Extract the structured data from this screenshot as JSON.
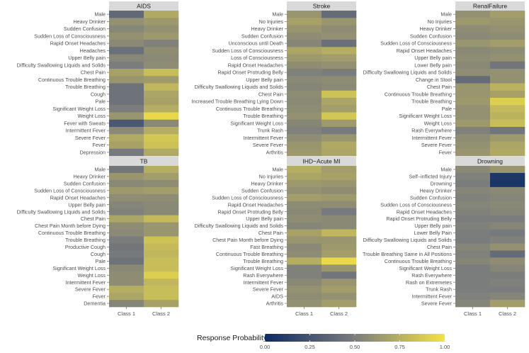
{
  "chart_data": {
    "type": "heatmap",
    "x_categories": [
      "Class 1",
      "Class 2"
    ],
    "legend": {
      "title": "Response Probability",
      "ticks": [
        "0.00",
        "0.25",
        "0.50",
        "0.75",
        "1.00"
      ],
      "range": [
        0,
        1
      ],
      "position": "bottom",
      "colors": {
        "low": "#0e2a63",
        "mid": "#7b7d7d",
        "high": "#f4e244"
      }
    },
    "panels": [
      {
        "title": "AIDS",
        "rows": [
          {
            "label": "Male",
            "values": [
              0.38,
              0.72
            ]
          },
          {
            "label": "Heavy Drinker",
            "values": [
              0.6,
              0.64
            ]
          },
          {
            "label": "Sudden Confusion",
            "values": [
              0.55,
              0.6
            ]
          },
          {
            "label": "Sudden Loss of Consciousness",
            "values": [
              0.6,
              0.64
            ]
          },
          {
            "label": "Rapid Onset Headaches",
            "values": [
              0.56,
              0.52
            ]
          },
          {
            "label": "Headaches",
            "values": [
              0.42,
              0.58
            ]
          },
          {
            "label": "Upper Belly pain",
            "values": [
              0.55,
              0.56
            ]
          },
          {
            "label": "Difficulty Swallowing Liquids and Solids",
            "values": [
              0.5,
              0.58
            ]
          },
          {
            "label": "Chest Pain",
            "values": [
              0.68,
              0.82
            ]
          },
          {
            "label": "Continuous Trouble Breathing",
            "values": [
              0.62,
              0.65
            ]
          },
          {
            "label": "Trouble Breathing",
            "values": [
              0.44,
              0.78
            ]
          },
          {
            "label": "Cough",
            "values": [
              0.44,
              0.7
            ]
          },
          {
            "label": "Pale",
            "values": [
              0.44,
              0.68
            ]
          },
          {
            "label": "Significant Weight Loss",
            "values": [
              0.5,
              0.74
            ]
          },
          {
            "label": "Weight Loss",
            "values": [
              0.62,
              0.95
            ]
          },
          {
            "label": "Fever with Sweats",
            "values": [
              0.28,
              0.56
            ]
          },
          {
            "label": "Intermittent Fever",
            "values": [
              0.56,
              0.74
            ]
          },
          {
            "label": "Severe Fever",
            "values": [
              0.72,
              0.86
            ]
          },
          {
            "label": "Fever",
            "values": [
              0.68,
              0.84
            ]
          },
          {
            "label": "Depression",
            "values": [
              0.48,
              0.72
            ]
          }
        ]
      },
      {
        "title": "Stroke",
        "rows": [
          {
            "label": "Male",
            "values": [
              0.62,
              0.4
            ]
          },
          {
            "label": "No Injuries",
            "values": [
              0.68,
              0.62
            ]
          },
          {
            "label": "Heavy Drinker",
            "values": [
              0.62,
              0.58
            ]
          },
          {
            "label": "Sudden Confusion",
            "values": [
              0.58,
              0.6
            ]
          },
          {
            "label": "Unconscious until Death",
            "values": [
              0.54,
              0.42
            ]
          },
          {
            "label": "Sudden Loss of Consciousness",
            "values": [
              0.7,
              0.74
            ]
          },
          {
            "label": "Loss of Consciousness",
            "values": [
              0.64,
              0.66
            ]
          },
          {
            "label": "Rapid Onset Headaches",
            "values": [
              0.58,
              0.6
            ]
          },
          {
            "label": "Rapid Onset Protruding Belly",
            "values": [
              0.52,
              0.5
            ]
          },
          {
            "label": "Upper Belly pain",
            "values": [
              0.56,
              0.58
            ]
          },
          {
            "label": "Difficulty Swallowing Liquids and Solids",
            "values": [
              0.54,
              0.56
            ]
          },
          {
            "label": "Chest Pain",
            "values": [
              0.58,
              0.84
            ]
          },
          {
            "label": "Increased Trouble Breathing Lying Down",
            "values": [
              0.56,
              0.7
            ]
          },
          {
            "label": "Continuous Trouble Breathing",
            "values": [
              0.58,
              0.66
            ]
          },
          {
            "label": "Trouble Breathing",
            "values": [
              0.6,
              0.86
            ]
          },
          {
            "label": "Significant Weight Loss",
            "values": [
              0.54,
              0.64
            ]
          },
          {
            "label": "Trunk Rash",
            "values": [
              0.52,
              0.48
            ]
          },
          {
            "label": "Intermittent Fever",
            "values": [
              0.58,
              0.62
            ]
          },
          {
            "label": "Severe Fever",
            "values": [
              0.62,
              0.72
            ]
          },
          {
            "label": "Arthritis",
            "values": [
              0.64,
              0.7
            ]
          }
        ]
      },
      {
        "title": "RenalFailure",
        "rows": [
          {
            "label": "Male",
            "values": [
              0.6,
              0.66
            ]
          },
          {
            "label": "No Injuries",
            "values": [
              0.64,
              0.62
            ]
          },
          {
            "label": "Heavy Drinker",
            "values": [
              0.58,
              0.6
            ]
          },
          {
            "label": "Sudden Confusion",
            "values": [
              0.56,
              0.58
            ]
          },
          {
            "label": "Sudden Loss of Consciousness",
            "values": [
              0.62,
              0.66
            ]
          },
          {
            "label": "Rapid Onset Headaches",
            "values": [
              0.56,
              0.58
            ]
          },
          {
            "label": "Upper Belly pain",
            "values": [
              0.58,
              0.6
            ]
          },
          {
            "label": "Lower Belly pain",
            "values": [
              0.56,
              0.46
            ]
          },
          {
            "label": "Difficulty Swallowing Liquids and Solids",
            "values": [
              0.58,
              0.6
            ]
          },
          {
            "label": "Change in Stool",
            "values": [
              0.4,
              0.6
            ]
          },
          {
            "label": "Chest Pain",
            "values": [
              0.62,
              0.76
            ]
          },
          {
            "label": "Continuous Trouble Breathing",
            "values": [
              0.62,
              0.68
            ]
          },
          {
            "label": "Trouble Breathing",
            "values": [
              0.64,
              0.9
            ]
          },
          {
            "label": "Pale",
            "values": [
              0.6,
              0.8
            ]
          },
          {
            "label": "Significant Weight Loss",
            "values": [
              0.6,
              0.76
            ]
          },
          {
            "label": "Weight Loss",
            "values": [
              0.64,
              0.82
            ]
          },
          {
            "label": "Rash Everywhere",
            "values": [
              0.52,
              0.46
            ]
          },
          {
            "label": "Intermittent Fever",
            "values": [
              0.58,
              0.64
            ]
          },
          {
            "label": "Severe Fever",
            "values": [
              0.6,
              0.7
            ]
          },
          {
            "label": "Fever",
            "values": [
              0.62,
              0.72
            ]
          }
        ]
      },
      {
        "title": "TB",
        "rows": [
          {
            "label": "Male",
            "values": [
              0.46,
              0.74
            ]
          },
          {
            "label": "Heavy Drinker",
            "values": [
              0.62,
              0.66
            ]
          },
          {
            "label": "Sudden Confusion",
            "values": [
              0.56,
              0.58
            ]
          },
          {
            "label": "Sudden Loss of Consciousness",
            "values": [
              0.64,
              0.66
            ]
          },
          {
            "label": "Rapid Onset Headaches",
            "values": [
              0.58,
              0.58
            ]
          },
          {
            "label": "Upper Belly pain",
            "values": [
              0.54,
              0.56
            ]
          },
          {
            "label": "Difficulty Swallowing Liquids and Solids",
            "values": [
              0.52,
              0.56
            ]
          },
          {
            "label": "Chest Pain",
            "values": [
              0.7,
              0.8
            ]
          },
          {
            "label": "Chest Pain Month before Dying",
            "values": [
              0.58,
              0.62
            ]
          },
          {
            "label": "Continuous Trouble Breathing",
            "values": [
              0.56,
              0.62
            ]
          },
          {
            "label": "Trouble Breathing",
            "values": [
              0.5,
              0.84
            ]
          },
          {
            "label": "Productive Cough",
            "values": [
              0.46,
              0.8
            ]
          },
          {
            "label": "Cough",
            "values": [
              0.48,
              0.78
            ]
          },
          {
            "label": "Pale",
            "values": [
              0.44,
              0.82
            ]
          },
          {
            "label": "Significant Weight Loss",
            "values": [
              0.56,
              0.82
            ]
          },
          {
            "label": "Weight Loss",
            "values": [
              0.58,
              0.9
            ]
          },
          {
            "label": "Intermittent Fever",
            "values": [
              0.58,
              0.78
            ]
          },
          {
            "label": "Severe Fever",
            "values": [
              0.74,
              0.82
            ]
          },
          {
            "label": "Fever",
            "values": [
              0.7,
              0.82
            ]
          },
          {
            "label": "Dementia",
            "values": [
              0.54,
              0.68
            ]
          }
        ]
      },
      {
        "title": "IHD−Acute MI",
        "rows": [
          {
            "label": "Male",
            "values": [
              0.74,
              0.66
            ]
          },
          {
            "label": "No Injuries",
            "values": [
              0.7,
              0.68
            ]
          },
          {
            "label": "Heavy Drinker",
            "values": [
              0.64,
              0.62
            ]
          },
          {
            "label": "Sudden Confusion",
            "values": [
              0.6,
              0.58
            ]
          },
          {
            "label": "Sudden Loss of Consciousness",
            "values": [
              0.66,
              0.64
            ]
          },
          {
            "label": "Rapid Onset Headaches",
            "values": [
              0.58,
              0.58
            ]
          },
          {
            "label": "Rapid Onset Protruding Belly",
            "values": [
              0.56,
              0.48
            ]
          },
          {
            "label": "Upper Belly pain",
            "values": [
              0.58,
              0.56
            ]
          },
          {
            "label": "Difficulty Swallowing Liquids and Solids",
            "values": [
              0.54,
              0.56
            ]
          },
          {
            "label": "Chest Pain",
            "values": [
              0.68,
              0.78
            ]
          },
          {
            "label": "Chest Pain Month before Dying",
            "values": [
              0.62,
              0.62
            ]
          },
          {
            "label": "Fast Breathing",
            "values": [
              0.56,
              0.64
            ]
          },
          {
            "label": "Continuous Trouble Breathing",
            "values": [
              0.58,
              0.66
            ]
          },
          {
            "label": "Trouble Breathing",
            "values": [
              0.74,
              0.96
            ]
          },
          {
            "label": "Significant Weight Loss",
            "values": [
              0.52,
              0.62
            ]
          },
          {
            "label": "Rash Everywhere",
            "values": [
              0.52,
              0.46
            ]
          },
          {
            "label": "Intermittent Fever",
            "values": [
              0.56,
              0.62
            ]
          },
          {
            "label": "Severe Fever",
            "values": [
              0.6,
              0.66
            ]
          },
          {
            "label": "AIDS",
            "values": [
              0.58,
              0.6
            ]
          },
          {
            "label": "Arthritis",
            "values": [
              0.6,
              0.66
            ]
          }
        ]
      },
      {
        "title": "Drowning",
        "rows": [
          {
            "label": "Male",
            "values": [
              0.56,
              0.62
            ]
          },
          {
            "label": "Self−inflicted Injury",
            "values": [
              0.52,
              0.08
            ]
          },
          {
            "label": "Drowning",
            "values": [
              0.5,
              0.06
            ]
          },
          {
            "label": "Heavy Drinker",
            "values": [
              0.54,
              0.56
            ]
          },
          {
            "label": "Sudden Confusion",
            "values": [
              0.52,
              0.54
            ]
          },
          {
            "label": "Sudden Loss of Consciousness",
            "values": [
              0.54,
              0.56
            ]
          },
          {
            "label": "Rapid Onset Headaches",
            "values": [
              0.52,
              0.54
            ]
          },
          {
            "label": "Rapid Onset Protruding Belly",
            "values": [
              0.5,
              0.5
            ]
          },
          {
            "label": "Upper Belly pain",
            "values": [
              0.52,
              0.54
            ]
          },
          {
            "label": "Lower Belly Pain",
            "values": [
              0.5,
              0.48
            ]
          },
          {
            "label": "Difficulty Swallowing Liquids and Solids",
            "values": [
              0.5,
              0.52
            ]
          },
          {
            "label": "Chest Pain",
            "values": [
              0.54,
              0.6
            ]
          },
          {
            "label": "Trouble Breathing Same in All Positions",
            "values": [
              0.52,
              0.4
            ]
          },
          {
            "label": "Continuous Trouble Breathing",
            "values": [
              0.54,
              0.58
            ]
          },
          {
            "label": "Significant Weight Loss",
            "values": [
              0.5,
              0.54
            ]
          },
          {
            "label": "Rash Everywhere",
            "values": [
              0.5,
              0.5
            ]
          },
          {
            "label": "Rash on Extremetes",
            "values": [
              0.5,
              0.52
            ]
          },
          {
            "label": "Trunk Rash",
            "values": [
              0.5,
              0.5
            ]
          },
          {
            "label": "Intermittent Fever",
            "values": [
              0.52,
              0.54
            ]
          },
          {
            "label": "Severe Fever",
            "values": [
              0.54,
              0.66
            ]
          }
        ]
      }
    ]
  }
}
